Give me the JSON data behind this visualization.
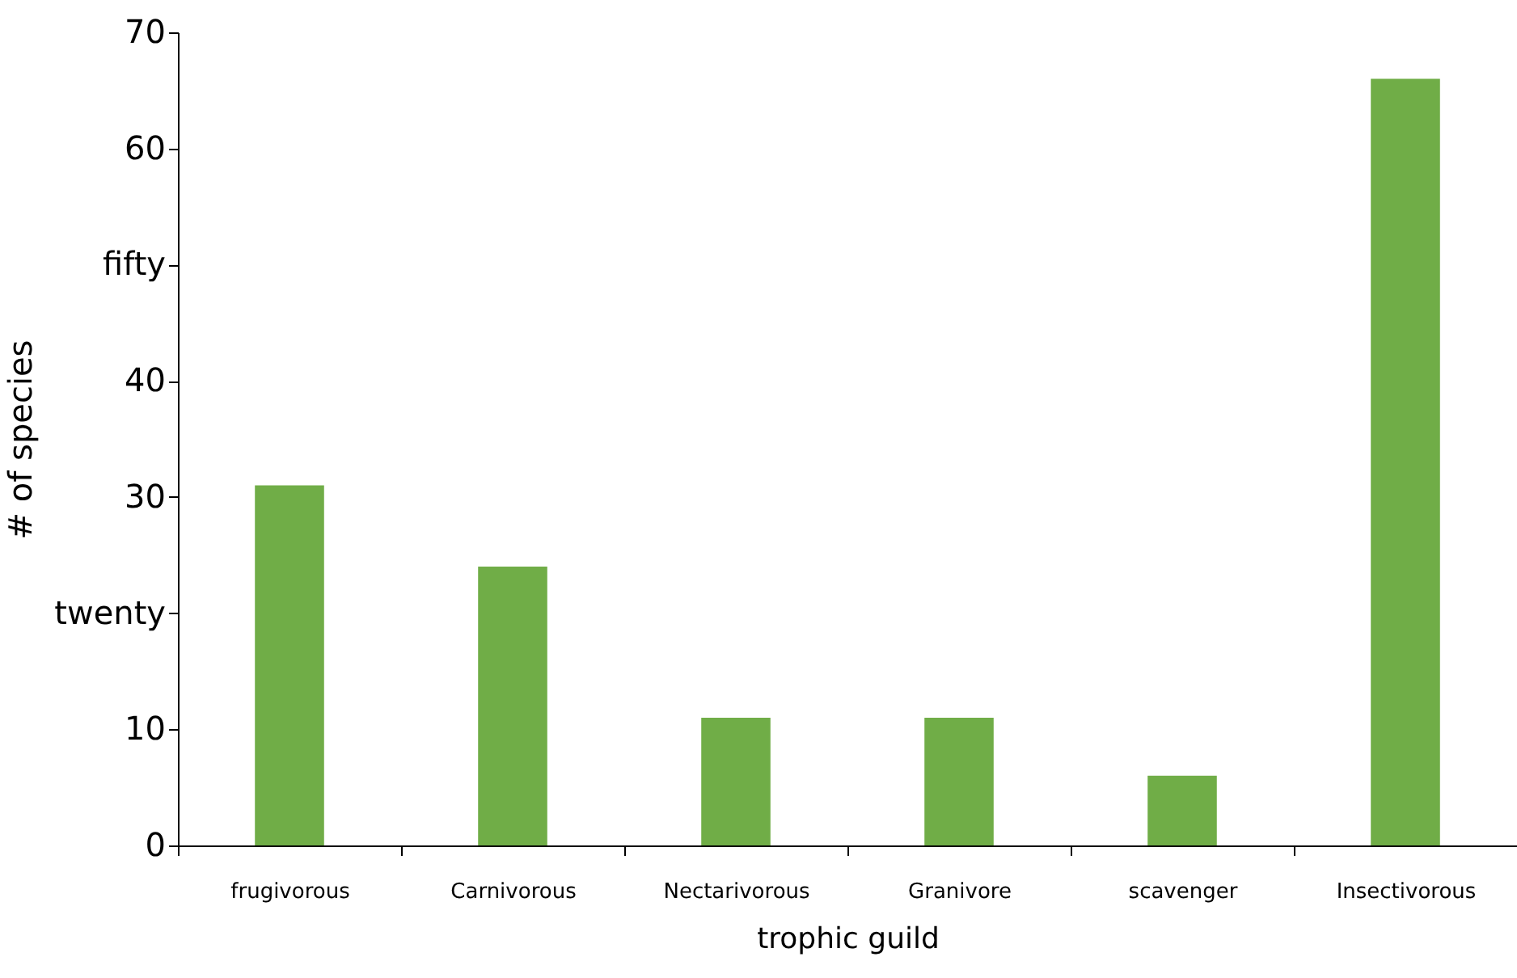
{
  "chart_data": {
    "type": "bar",
    "xlabel": "trophic guild",
    "ylabel": "# of species",
    "categories": [
      "frugivorous",
      "Carnivorous",
      "Nectarivorous",
      "Granivore",
      "scavenger",
      "Insectivorous"
    ],
    "values": [
      31,
      24,
      11,
      11,
      6,
      66
    ],
    "color": "#70ad47",
    "ylim": [
      0,
      70
    ],
    "yticks": [
      0,
      10,
      {
        "value": 20,
        "label": "twenty"
      },
      30,
      40,
      {
        "value": 50,
        "label": "fifty"
      },
      60,
      70
    ],
    "grid": false
  }
}
